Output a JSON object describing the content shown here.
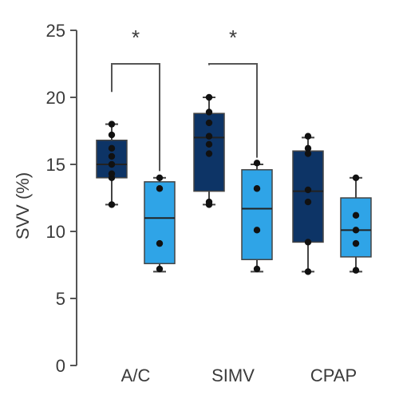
{
  "chart_data": {
    "type": "box",
    "ylabel": "SVV (%)",
    "ylim": [
      0,
      25
    ],
    "yticks": [
      "0",
      "5",
      "10",
      "15",
      "20",
      "25"
    ],
    "categories": [
      "A/C",
      "SIMV",
      "CPAP"
    ],
    "colors": {
      "dark": "#0d3466",
      "light": "#2fa4e7",
      "axis": "#555555",
      "point": "#111111"
    },
    "boxes": [
      {
        "group": "A/C",
        "shade": "dark",
        "min": 12,
        "q1": 14,
        "median": 15,
        "q3": 16.8,
        "max": 18,
        "points": [
          12,
          14,
          14.3,
          15,
          15.6,
          16.2,
          17.2,
          18
        ]
      },
      {
        "group": "A/C",
        "shade": "light",
        "min": 7,
        "q1": 7.6,
        "median": 11,
        "q3": 13.7,
        "max": 14,
        "points": [
          7.2,
          9.1,
          13.2,
          14
        ]
      },
      {
        "group": "SIMV",
        "shade": "dark",
        "min": 12,
        "q1": 13,
        "median": 17,
        "q3": 18.8,
        "max": 20,
        "points": [
          12,
          12.2,
          15.8,
          16.5,
          17.1,
          18.1,
          18.9,
          20
        ]
      },
      {
        "group": "SIMV",
        "shade": "light",
        "min": 7,
        "q1": 7.9,
        "median": 11.7,
        "q3": 14.6,
        "max": 15,
        "points": [
          7.2,
          10.1,
          13.2,
          15.1
        ]
      },
      {
        "group": "CPAP",
        "shade": "dark",
        "min": 7,
        "q1": 9.2,
        "median": 13,
        "q3": 16,
        "max": 17,
        "points": [
          7,
          9.2,
          12.2,
          13.1,
          15.8,
          16.2,
          17.1
        ]
      },
      {
        "group": "CPAP",
        "shade": "light",
        "min": 7,
        "q1": 8.1,
        "median": 10.1,
        "q3": 12.5,
        "max": 14,
        "points": [
          7.1,
          9.1,
          10.1,
          11.2,
          14
        ]
      }
    ],
    "annotations": [
      {
        "text": "*",
        "group": "A/C",
        "y": 24.3
      },
      {
        "text": "*",
        "group": "SIMV",
        "y": 24.3
      }
    ]
  }
}
